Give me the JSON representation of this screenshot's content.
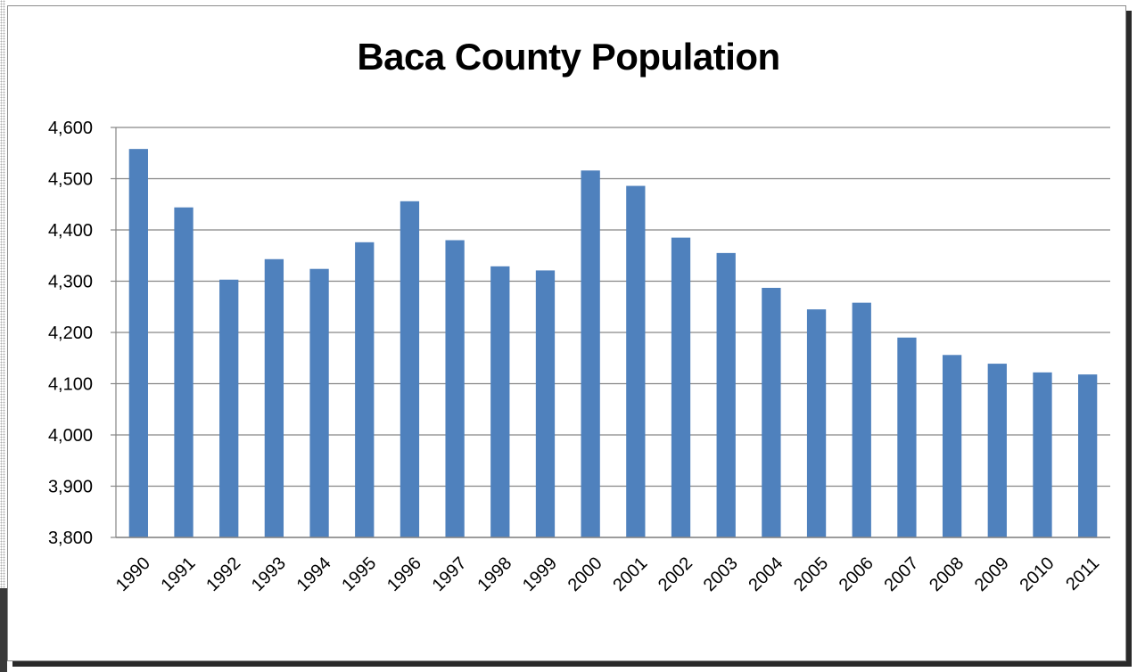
{
  "chart_data": {
    "type": "bar",
    "title": "Baca County Population",
    "xlabel": "",
    "ylabel": "",
    "categories": [
      "1990",
      "1991",
      "1992",
      "1993",
      "1994",
      "1995",
      "1996",
      "1997",
      "1998",
      "1999",
      "2000",
      "2001",
      "2002",
      "2003",
      "2004",
      "2005",
      "2006",
      "2007",
      "2008",
      "2009",
      "2010",
      "2011"
    ],
    "values": [
      4558,
      4444,
      4303,
      4343,
      4324,
      4376,
      4456,
      4380,
      4329,
      4321,
      4516,
      4486,
      4385,
      4355,
      4287,
      4245,
      4258,
      4190,
      4156,
      4139,
      4122,
      4118
    ],
    "ylim": [
      3800,
      4600
    ],
    "yticks": [
      3800,
      3900,
      4000,
      4100,
      4200,
      4300,
      4400,
      4500,
      4600
    ],
    "ytick_labels": [
      "3,800",
      "3,900",
      "4,000",
      "4,100",
      "4,200",
      "4,300",
      "4,400",
      "4,500",
      "4,600"
    ],
    "grid": true,
    "legend": "none",
    "bar_color": "#4f81bd",
    "grid_color": "#868686"
  }
}
